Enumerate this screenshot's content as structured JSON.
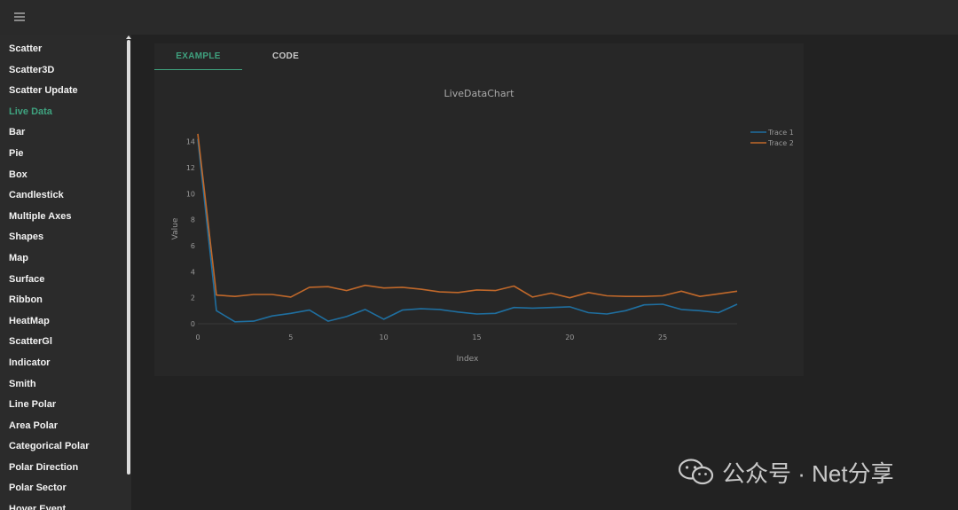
{
  "sidebar": {
    "items": [
      "Scatter",
      "Scatter3D",
      "Scatter Update",
      "Live Data",
      "Bar",
      "Pie",
      "Box",
      "Candlestick",
      "Multiple Axes",
      "Shapes",
      "Map",
      "Surface",
      "Ribbon",
      "HeatMap",
      "ScatterGl",
      "Indicator",
      "Smith",
      "Line Polar",
      "Area Polar",
      "Categorical Polar",
      "Polar Direction",
      "Polar Sector",
      "Hover Event"
    ],
    "active": "Live Data"
  },
  "tabs": {
    "example": "EXAMPLE",
    "code": "CODE",
    "active": "EXAMPLE"
  },
  "watermark": {
    "text": "公众号 · Net分享",
    "icon": "wechat-icon"
  },
  "chart_data": {
    "type": "line",
    "title": "LiveDataChart",
    "xlabel": "Index",
    "ylabel": "Value",
    "xlim": [
      0,
      29
    ],
    "ylim": [
      0,
      15
    ],
    "xticks": [
      0,
      5,
      10,
      15,
      20,
      25
    ],
    "yticks": [
      0,
      2,
      4,
      6,
      8,
      10,
      12,
      14
    ],
    "grid": false,
    "legend": "top-right",
    "x": [
      0,
      1,
      2,
      3,
      4,
      5,
      6,
      7,
      8,
      9,
      10,
      11,
      12,
      13,
      14,
      15,
      16,
      17,
      18,
      19,
      20,
      21,
      22,
      23,
      24,
      25,
      26,
      27,
      28,
      29
    ],
    "series": [
      {
        "name": "Trace 1",
        "color": "#1f6fa0",
        "values": [
          14.2,
          1.0,
          0.15,
          0.2,
          0.6,
          0.8,
          1.05,
          0.2,
          0.55,
          1.1,
          0.35,
          1.05,
          1.15,
          1.1,
          0.9,
          0.75,
          0.8,
          1.25,
          1.2,
          1.25,
          1.3,
          0.85,
          0.75,
          1.0,
          1.45,
          1.5,
          1.1,
          1.0,
          0.85,
          1.5
        ]
      },
      {
        "name": "Trace 2",
        "color": "#c0682a",
        "values": [
          14.6,
          2.2,
          2.1,
          2.25,
          2.25,
          2.05,
          2.8,
          2.85,
          2.55,
          2.95,
          2.75,
          2.8,
          2.65,
          2.45,
          2.4,
          2.6,
          2.55,
          2.9,
          2.05,
          2.35,
          2.0,
          2.4,
          2.15,
          2.1,
          2.1,
          2.15,
          2.5,
          2.1,
          2.3,
          2.5
        ]
      }
    ]
  }
}
